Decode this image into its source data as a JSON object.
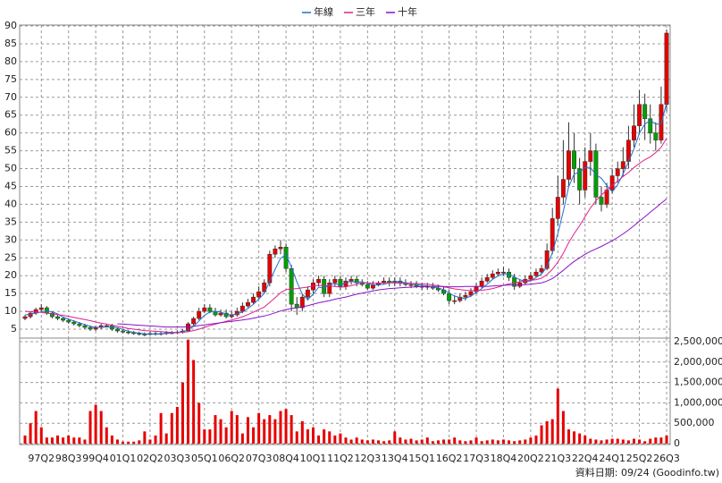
{
  "chart_data": {
    "type": "candlestick",
    "categories": [
      null,
      null,
      null,
      "97Q2",
      null,
      null,
      null,
      null,
      "98Q3",
      null,
      null,
      null,
      null,
      "99Q4",
      null,
      null,
      null,
      null,
      "01Q1",
      null,
      null,
      null,
      null,
      "02Q2",
      null,
      null,
      null,
      null,
      "03Q3",
      null,
      null,
      null,
      null,
      "05Q1",
      null,
      null,
      null,
      null,
      "06Q2",
      null,
      null,
      null,
      null,
      "07Q3",
      null,
      null,
      null,
      null,
      "08Q4",
      null,
      null,
      null,
      null,
      "10Q1",
      null,
      null,
      null,
      null,
      "11Q2",
      null,
      null,
      null,
      null,
      "12Q3",
      null,
      null,
      null,
      null,
      "13Q4",
      null,
      null,
      null,
      null,
      "15Q1",
      null,
      null,
      null,
      null,
      "16Q2",
      null,
      null,
      null,
      null,
      "17Q3",
      null,
      null,
      null,
      null,
      "18Q4",
      null,
      null,
      null,
      null,
      "20Q2",
      null,
      null,
      null,
      null,
      "21Q3",
      null,
      null,
      null,
      null,
      "22Q4",
      null,
      null,
      null,
      null,
      "24Q1",
      null,
      null,
      null,
      null,
      "25Q2",
      null,
      null,
      null,
      null,
      "26Q3"
    ],
    "open": [
      8,
      8.5,
      9.5,
      10.5,
      11,
      9.5,
      8.5,
      8,
      7.5,
      7,
      6.5,
      6,
      5.5,
      5,
      5.5,
      6,
      6,
      5,
      4.5,
      4.2,
      4,
      3.8,
      3.6,
      3.5,
      3.8,
      3.6,
      3.8,
      4,
      4,
      4.2,
      4.5,
      6.5,
      8,
      10,
      11,
      10,
      9,
      9.5,
      8.5,
      9,
      10,
      11.5,
      12.5,
      14,
      15.5,
      18,
      26,
      27.5,
      28,
      22,
      12,
      11,
      14,
      16,
      18,
      19,
      15,
      18,
      19,
      17,
      18.5,
      19,
      18,
      17.5,
      16.5,
      17.5,
      18,
      18.5,
      18,
      18.5,
      18,
      17.5,
      17.5,
      17,
      17,
      17,
      16.5,
      16,
      15,
      13,
      13,
      14,
      14.5,
      15.5,
      17,
      18.5,
      19.5,
      20.5,
      21,
      21,
      19.5,
      17,
      18,
      19,
      20,
      21,
      22,
      27,
      36,
      42,
      47,
      55,
      50,
      44,
      52,
      55,
      42,
      40,
      44,
      48,
      50,
      52,
      58,
      62,
      68,
      64,
      60,
      58,
      68
    ],
    "high": [
      9,
      10,
      11,
      12,
      11.5,
      10,
      9,
      8.5,
      8,
      7.5,
      7,
      6.5,
      6,
      6,
      6.5,
      6.5,
      6.5,
      5.5,
      5,
      4.7,
      4.5,
      4.3,
      4.1,
      4.3,
      4.3,
      4.3,
      4.5,
      4.5,
      4.7,
      5,
      7,
      8.5,
      11,
      12,
      12,
      11,
      10.5,
      10.5,
      10,
      11,
      12.5,
      13.5,
      15,
      17,
      19,
      27,
      28.5,
      30,
      29,
      23,
      14,
      15,
      17,
      19,
      20,
      20,
      19,
      20,
      20,
      19.5,
      20,
      20,
      19,
      18.5,
      18.5,
      18.5,
      19.5,
      19.5,
      19.5,
      19.5,
      19,
      18.5,
      18.5,
      18,
      18,
      18,
      17.5,
      17,
      16,
      14.5,
      15,
      15.5,
      16.5,
      18,
      19.5,
      20.5,
      21.5,
      22,
      22.5,
      22,
      20.5,
      19,
      20,
      21,
      22,
      23,
      29,
      39,
      48,
      58,
      63,
      60,
      53,
      56,
      60,
      57,
      45,
      46,
      50,
      52,
      56,
      62,
      68,
      72,
      71,
      68,
      63,
      73,
      89
    ],
    "low": [
      7.5,
      8,
      9,
      10,
      9,
      8,
      7.5,
      7,
      6.5,
      6,
      5.5,
      5,
      4.5,
      4.5,
      5,
      5.5,
      4.5,
      4,
      3.8,
      3.6,
      3.4,
      3.2,
      3,
      3.2,
      3.2,
      3.2,
      3.4,
      3.6,
      3.6,
      3.8,
      4.2,
      6,
      7.5,
      9.5,
      9.5,
      8.5,
      8.5,
      8,
      8,
      8.5,
      9.5,
      11,
      12,
      13.5,
      15,
      17,
      25,
      26,
      21,
      10,
      9,
      10,
      13,
      15,
      17,
      14,
      14,
      17,
      16,
      16,
      17.5,
      17,
      17,
      16,
      16,
      17,
      17.5,
      17,
      17,
      17,
      17,
      16.5,
      16.5,
      16,
      16,
      16,
      15.5,
      14.5,
      12,
      12,
      12.5,
      13,
      14,
      15,
      16.5,
      18,
      19,
      20,
      20,
      18.5,
      16,
      16.5,
      17.5,
      18.5,
      19.5,
      20.5,
      21.5,
      26,
      34,
      40,
      45,
      46,
      40,
      42,
      48,
      40,
      38,
      39,
      43,
      46,
      48,
      50,
      56,
      60,
      58,
      57,
      55,
      57,
      66
    ],
    "close": [
      8.5,
      9.5,
      10.5,
      11,
      9.5,
      8.5,
      8,
      7.5,
      7,
      6.5,
      6,
      5.5,
      5,
      5.5,
      6,
      6,
      5,
      4.5,
      4.2,
      4,
      3.8,
      3.6,
      3.5,
      3.8,
      3.6,
      3.8,
      4,
      4,
      4.2,
      4.5,
      6.5,
      8,
      10,
      11,
      10,
      9,
      9.5,
      8.5,
      9,
      10,
      11.5,
      12.5,
      14,
      15.5,
      18,
      26,
      27.5,
      28,
      22,
      12,
      11,
      14,
      16,
      18,
      19,
      15,
      18,
      19,
      17,
      18.5,
      19,
      18,
      17.5,
      16.5,
      17.5,
      18,
      18.5,
      18,
      18.5,
      18,
      17.5,
      17.5,
      17,
      17,
      17,
      16.5,
      16,
      15,
      13,
      13,
      14,
      14.5,
      15.5,
      17,
      18.5,
      19.5,
      20.5,
      21,
      21,
      19.5,
      17,
      18,
      19,
      20,
      21,
      22,
      27,
      36,
      42,
      47,
      55,
      50,
      44,
      52,
      55,
      42,
      40,
      44,
      48,
      50,
      52,
      58,
      62,
      68,
      64,
      60,
      58,
      68,
      88
    ],
    "up_color": "#e60000",
    "down_color": "#00a000",
    "series": [
      {
        "name": "年線",
        "color": "#1f6fd0",
        "values": [
          9,
          9.2,
          9.5,
          9.9,
          10.1,
          9.9,
          9.3,
          8.4,
          7.8,
          7.3,
          6.8,
          6.3,
          5.8,
          5.5,
          5.5,
          5.6,
          5.6,
          5.4,
          4.9,
          4.4,
          4.1,
          3.9,
          3.7,
          3.7,
          3.6,
          3.7,
          3.8,
          3.9,
          4.1,
          4.3,
          4.8,
          5.8,
          7.3,
          8.9,
          9.8,
          10,
          9.8,
          9.2,
          9,
          9.3,
          9.8,
          10.8,
          12,
          13.4,
          15,
          18.4,
          21.8,
          24.9,
          25.9,
          22.4,
          18.3,
          14.8,
          13.3,
          14.8,
          16.8,
          16.5,
          17.5,
          17.8,
          17.3,
          18.1,
          18.4,
          18.1,
          18.3,
          17.8,
          17.4,
          17.4,
          17.6,
          18,
          18.3,
          18.3,
          18,
          17.9,
          17.5,
          17.3,
          17.1,
          16.9,
          16.6,
          16.1,
          15.1,
          14.3,
          13.8,
          13.6,
          14.3,
          15.3,
          16.4,
          17.6,
          19,
          19.9,
          20.5,
          20.5,
          19.6,
          18.9,
          18.4,
          18.5,
          19.5,
          20.5,
          22.5,
          26.5,
          31.8,
          38,
          45,
          48.5,
          49,
          50.3,
          50.3,
          48.3,
          47.3,
          45.3,
          43.5,
          45.5,
          48.5,
          52,
          55.5,
          60,
          62.5,
          63.5,
          62.5,
          62.5,
          68.5
        ]
      },
      {
        "name": "三年",
        "color": "#e0208a",
        "values": [
          10,
          9.9,
          9.8,
          9.7,
          9.5,
          9.3,
          9.1,
          8.9,
          8.6,
          8.3,
          8,
          7.7,
          7.4,
          7,
          6.7,
          6.4,
          6.1,
          5.8,
          5.5,
          5.2,
          5,
          4.8,
          4.6,
          4.5,
          4.4,
          4.3,
          4.2,
          4.1,
          4.1,
          4.1,
          4.3,
          4.6,
          5,
          5.5,
          6,
          6.4,
          6.8,
          7.2,
          7.6,
          8,
          8.5,
          9.1,
          9.8,
          10.5,
          11.2,
          12.5,
          13.8,
          15.2,
          16.1,
          16.3,
          16.4,
          16.6,
          16.8,
          17.1,
          17.3,
          17.2,
          17.1,
          17,
          16.8,
          16.9,
          17.2,
          17.6,
          18,
          18,
          17.9,
          17.9,
          18,
          18,
          18,
          17.9,
          17.8,
          17.8,
          17.8,
          17.7,
          17.6,
          17.4,
          17.2,
          16.9,
          16.6,
          16.3,
          16.1,
          15.9,
          15.8,
          15.8,
          15.9,
          16.1,
          16.4,
          16.8,
          17.3,
          17.7,
          18,
          18.3,
          18.5,
          18.7,
          18.9,
          19.3,
          20.3,
          21.8,
          23.8,
          26.3,
          29.3,
          31.8,
          34,
          36.5,
          39,
          41,
          42.6,
          44,
          45.3,
          46.5,
          47.8,
          48.9,
          50.3,
          51.5,
          52.5,
          53.3,
          54.5,
          56,
          58.5
        ]
      },
      {
        "name": "十年",
        "color": "#8a10c8",
        "values": [
          null,
          null,
          null,
          null,
          null,
          null,
          null,
          null,
          null,
          null,
          null,
          null,
          null,
          null,
          null,
          null,
          null,
          6.5,
          6.4,
          6.3,
          6.2,
          6.1,
          6,
          5.9,
          5.8,
          5.7,
          5.6,
          5.6,
          5.6,
          5.6,
          5.7,
          5.8,
          6,
          6.2,
          6.4,
          6.6,
          6.8,
          7,
          7.2,
          7.4,
          7.6,
          7.8,
          8.1,
          8.4,
          8.7,
          9.1,
          9.6,
          10.1,
          10.5,
          10.8,
          11,
          11.3,
          11.6,
          12,
          12.4,
          12.7,
          13,
          13.4,
          13.7,
          14,
          14.4,
          14.8,
          15.1,
          15.4,
          15.7,
          16,
          16.2,
          16.4,
          16.5,
          16.6,
          16.7,
          16.8,
          16.9,
          17,
          17,
          17,
          17,
          17,
          16.9,
          16.9,
          16.9,
          17,
          17,
          17,
          17,
          17,
          17.1,
          17.2,
          17.3,
          17.4,
          17.4,
          17.4,
          17.5,
          17.6,
          17.8,
          18,
          18.5,
          19.2,
          20.3,
          21.5,
          22.8,
          24,
          25,
          26,
          26.8,
          27.5,
          28.2,
          29,
          29.8,
          30.7,
          31.7,
          32.8,
          34,
          35.3,
          36.5,
          37.8,
          39,
          40.3,
          41.5
        ]
      }
    ],
    "ylim": [
      3,
      90
    ],
    "yticks": [
      5,
      10,
      15,
      20,
      25,
      30,
      35,
      40,
      45,
      50,
      55,
      60,
      65,
      70,
      75,
      80,
      85,
      90
    ],
    "grid": true,
    "volume": {
      "color": "#e60000",
      "values": [
        200000,
        500000,
        800000,
        400000,
        150000,
        150000,
        200000,
        150000,
        200000,
        150000,
        150000,
        100000,
        800000,
        950000,
        800000,
        400000,
        200000,
        100000,
        50000,
        50000,
        50000,
        80000,
        300000,
        100000,
        200000,
        750000,
        250000,
        750000,
        900000,
        1500000,
        2550000,
        2050000,
        1000000,
        350000,
        350000,
        700000,
        600000,
        400000,
        800000,
        700000,
        250000,
        650000,
        400000,
        750000,
        600000,
        700000,
        600000,
        800000,
        850000,
        700000,
        300000,
        550000,
        350000,
        400000,
        200000,
        350000,
        300000,
        200000,
        250000,
        150000,
        100000,
        150000,
        100000,
        80000,
        100000,
        80000,
        60000,
        80000,
        300000,
        150000,
        100000,
        120000,
        80000,
        100000,
        150000,
        60000,
        80000,
        100000,
        100000,
        150000,
        80000,
        60000,
        80000,
        150000,
        60000,
        80000,
        100000,
        80000,
        100000,
        80000,
        60000,
        80000,
        100000,
        150000,
        200000,
        450000,
        550000,
        600000,
        1350000,
        800000,
        350000,
        300000,
        250000,
        200000,
        120000,
        100000,
        80000,
        100000,
        120000,
        120000,
        100000,
        80000,
        120000,
        100000,
        60000,
        120000,
        150000,
        150000,
        200000
      ],
      "ylim": [
        0,
        2500000
      ],
      "yticks": [
        0,
        {
          "value": 500000,
          "label": "500,000"
        },
        {
          "value": 1000000,
          "label": "1,000,000"
        },
        {
          "value": 1500000,
          "label": "1,500,000"
        },
        {
          "value": 2000000,
          "label": "2,000,000"
        },
        {
          "value": 2500000,
          "label": "2,500,000"
        }
      ]
    },
    "footer": "資料日期: 09/24 (Goodinfo.tw)"
  }
}
